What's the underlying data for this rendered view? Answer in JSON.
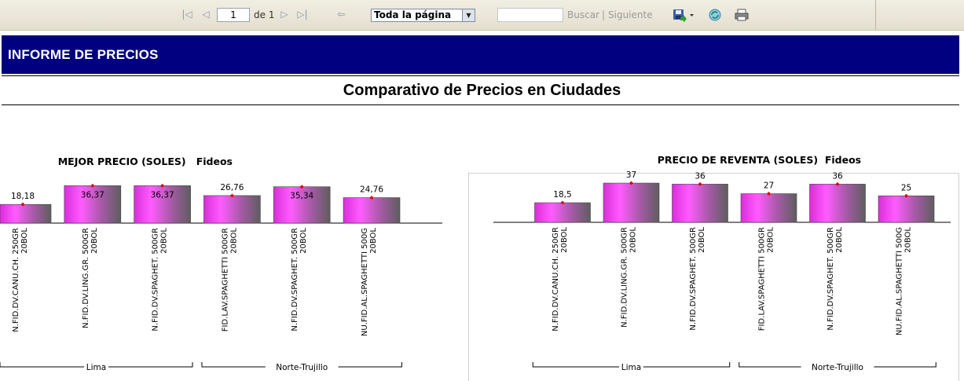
{
  "toolbar": {
    "page_value": "1",
    "of_label": "de 1",
    "zoom_value": "Toda la página",
    "search_placeholder": "",
    "find_label": "Buscar",
    "separator": "|",
    "next_label": "Siguiente",
    "icons": [
      "first-page-icon",
      "prev-page-icon",
      "next-page-icon",
      "last-page-icon",
      "back-icon",
      "export-icon",
      "refresh-icon",
      "print-icon"
    ]
  },
  "header": {
    "title": "INFORME DE PRECIOS",
    "background": "#000080"
  },
  "section_title": "Comparativo de Precios en Ciudades",
  "chart_data": [
    {
      "type": "bar",
      "title": "MEJOR PRECIO (SOLES)",
      "subtitle": "Fideos",
      "categories": [
        [
          "N.FID.DV.CANU.CH. 250GR",
          "20BOL"
        ],
        [
          "N.FID.DV.LING.GR. 500GR",
          "20BOL"
        ],
        [
          "N.FID.DV.SPAGHET. 500GR",
          "20BOL"
        ],
        [
          "FID.LAV.SPAGHETTI 500GR",
          "20BOL"
        ],
        [
          "N.FID.DV.SPAGHET. 500GR",
          "20BOL"
        ],
        [
          "NU.FID.AL.SPAGHETTI 500G",
          "20BOL"
        ]
      ],
      "values": [
        18.18,
        36.37,
        36.37,
        26.76,
        35.34,
        24.76
      ],
      "data_labels": [
        "18,18",
        "36,37",
        "36,37",
        "26,76",
        "35,34",
        "24,76"
      ],
      "groups": [
        {
          "name": "Lima",
          "count": 3
        },
        {
          "name": "Norte-Trujillo",
          "count": 3
        }
      ],
      "ylim": [
        0,
        40
      ],
      "colors": {
        "bar_light": "#ff40ff",
        "bar_dark": "#6e6e6e",
        "marker": "#e00000"
      }
    },
    {
      "type": "bar",
      "title": "PRECIO DE REVENTA (SOLES)",
      "subtitle": "Fideos",
      "categories": [
        [
          "N.FID.DV.CANU.CH. 250GR",
          "20BOL"
        ],
        [
          "N.FID.DV.LING.GR. 500GR",
          "20BOL"
        ],
        [
          "N.FID.DV.SPAGHET. 500GR",
          "20BOL"
        ],
        [
          "FID.LAV.SPAGHETTI 500GR",
          "20BOL"
        ],
        [
          "N.FID.DV.SPAGHET. 500GR",
          "20BOL"
        ],
        [
          "NU.FID.AL.SPAGHETTI 500G",
          "20BOL"
        ]
      ],
      "values": [
        18.5,
        37,
        36,
        27,
        36,
        25
      ],
      "data_labels": [
        "18,5",
        "37",
        "36",
        "27",
        "36",
        "25"
      ],
      "groups": [
        {
          "name": "Lima",
          "count": 3
        },
        {
          "name": "Norte-Trujillo",
          "count": 3
        }
      ],
      "ylim": [
        0,
        40
      ],
      "colors": {
        "bar_light": "#ff40ff",
        "bar_dark": "#6e6e6e",
        "marker": "#e00000"
      }
    }
  ]
}
